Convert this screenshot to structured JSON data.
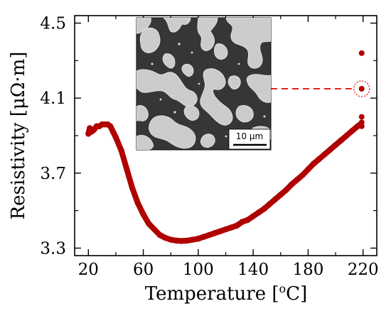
{
  "chart_data": {
    "type": "scatter",
    "xlabel": "Temperature [°C]",
    "xlabel_main": "Temperature [",
    "xlabel_sup": "o",
    "xlabel_end": "C]",
    "ylabel": "Resistivity [μΩ·m]",
    "ylabel_main": "Resistivity [",
    "ylabel_unit": "μΩ·m",
    "ylabel_end": "]",
    "xlim": [
      10,
      230
    ],
    "ylim": [
      3.26,
      4.54
    ],
    "xticks": [
      20,
      60,
      100,
      140,
      180,
      220
    ],
    "yticks": [
      3.3,
      3.7,
      4.1,
      4.5
    ],
    "ytick_labels": [
      "3.3",
      "3.7",
      "4.1",
      "4.5"
    ],
    "grid": false,
    "marker_color": "#b00000",
    "series": [
      {
        "x": [
          20,
          21,
          22,
          24,
          26,
          28,
          30,
          32,
          34,
          36,
          38,
          40,
          44,
          48,
          52,
          56,
          60,
          64,
          68,
          72,
          76,
          80,
          84,
          88,
          92,
          96,
          100,
          104,
          108,
          112,
          116,
          120,
          124,
          128,
          132,
          136,
          140,
          144,
          148,
          152,
          156,
          160,
          164,
          168,
          172,
          176,
          180,
          184,
          188,
          192,
          196,
          200,
          204,
          208,
          212,
          216,
          218
        ],
        "y": [
          3.91,
          3.94,
          3.92,
          3.93,
          3.95,
          3.95,
          3.96,
          3.96,
          3.96,
          3.95,
          3.92,
          3.89,
          3.82,
          3.72,
          3.62,
          3.54,
          3.48,
          3.43,
          3.4,
          3.37,
          3.355,
          3.345,
          3.34,
          3.338,
          3.34,
          3.345,
          3.35,
          3.36,
          3.37,
          3.38,
          3.39,
          3.4,
          3.41,
          3.42,
          3.44,
          3.45,
          3.47,
          3.49,
          3.51,
          3.535,
          3.56,
          3.585,
          3.61,
          3.64,
          3.665,
          3.69,
          3.72,
          3.75,
          3.775,
          3.8,
          3.825,
          3.85,
          3.875,
          3.9,
          3.925,
          3.95,
          3.96
        ]
      },
      {
        "x": [
          219,
          219,
          219,
          219,
          219
        ],
        "y": [
          4.34,
          4.15,
          4.0,
          3.97,
          3.95
        ]
      }
    ],
    "annotations": {
      "highlight": {
        "x": 219,
        "y": 4.15
      },
      "inset_scale_bar": "10 μm"
    }
  },
  "inset": {
    "name": "SEM micrograph",
    "scale_bar_label": "10 μm",
    "background_color": "#2c2c2c",
    "particle_color": "#c9c9c9"
  }
}
